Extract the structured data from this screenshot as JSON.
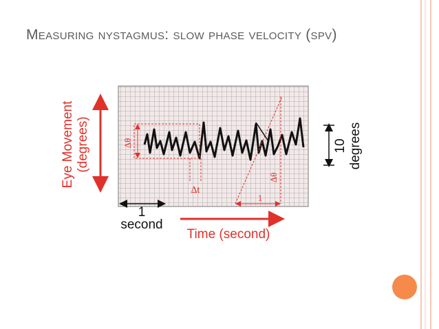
{
  "slide": {
    "title": "Measuring nystagmus: slow phase velocity (spv)",
    "diagram": {
      "y_axis_label_line1": "Eye Movement",
      "y_axis_label_line2": "(degrees)",
      "delta_theta_left": "Δθ",
      "delta_t": "Δt",
      "delta_theta_right": "Δθ",
      "one_label": "1",
      "scale_value": "10",
      "scale_unit": "degrees",
      "time_scale_value": "1",
      "time_scale_unit": "second",
      "x_axis_label": "Time (second)"
    }
  }
}
